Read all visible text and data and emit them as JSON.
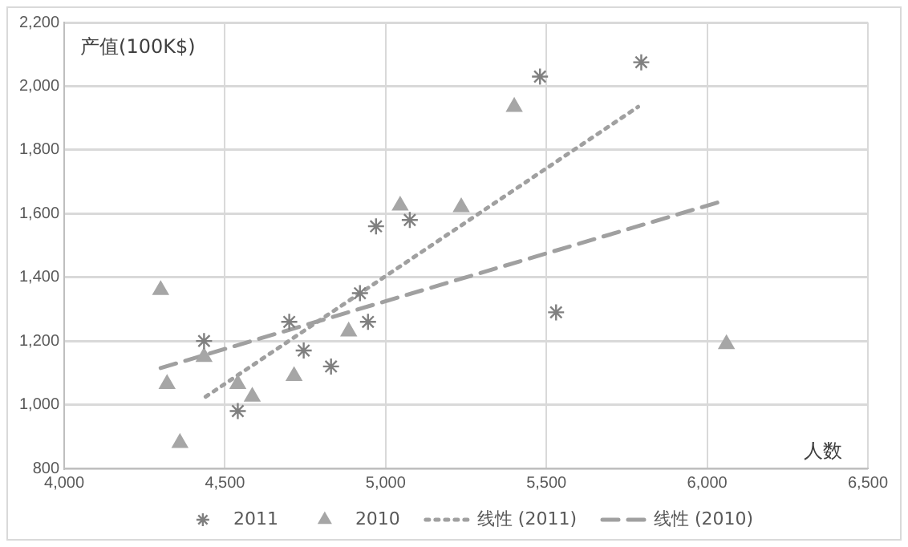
{
  "chart_data": {
    "type": "scatter",
    "xlabel": "人数",
    "ylabel": "产值(100K$)",
    "xlim": [
      4000,
      6500
    ],
    "xticks": [
      {
        "value": 4000,
        "label": "4,000"
      },
      {
        "value": 4500,
        "label": "4,500"
      },
      {
        "value": 5000,
        "label": "5,000"
      },
      {
        "value": 5500,
        "label": "5,500"
      },
      {
        "value": 6000,
        "label": "6,000"
      },
      {
        "value": 6500,
        "label": "6,500"
      }
    ],
    "ylim": [
      800,
      2200
    ],
    "yticks": [
      {
        "value": 800,
        "label": "800"
      },
      {
        "value": 1000,
        "label": "1,000"
      },
      {
        "value": 1200,
        "label": "1,200"
      },
      {
        "value": 1400,
        "label": "1,400"
      },
      {
        "value": 1600,
        "label": "1,600"
      },
      {
        "value": 1800,
        "label": "1,800"
      },
      {
        "value": 2000,
        "label": "2,000"
      },
      {
        "value": 2200,
        "label": "2,200"
      }
    ],
    "grid": true,
    "legend": "bottom",
    "series": [
      {
        "name": "2011",
        "type": "scatter",
        "marker": "cross",
        "color": "#808080",
        "x": [
          4435,
          4540,
          4700,
          4745,
          4830,
          4920,
          4945,
          4970,
          5075,
          5480,
          5795,
          5530
        ],
        "values": [
          1200,
          980,
          1260,
          1170,
          1120,
          1350,
          1260,
          1560,
          1580,
          2030,
          2075,
          1290
        ]
      },
      {
        "name": "2010",
        "type": "scatter",
        "marker": "triangle",
        "color": "#a6a6a6",
        "x": [
          4300,
          4320,
          4360,
          4435,
          4540,
          4585,
          4715,
          4885,
          5045,
          5235,
          5400,
          6060
        ],
        "values": [
          1360,
          1065,
          880,
          1150,
          1065,
          1025,
          1090,
          1230,
          1625,
          1620,
          1935,
          1190
        ]
      },
      {
        "name": "线性 (2011)",
        "type": "line",
        "line_style": "dotted",
        "marker": "none",
        "color": "#a0a0a0",
        "x": [
          4440,
          5785
        ],
        "values": [
          1025,
          1935
        ]
      },
      {
        "name": "线性 (2010)",
        "type": "line",
        "line_style": "dashed",
        "marker": "none",
        "color": "#a0a0a0",
        "x": [
          4300,
          6050
        ],
        "values": [
          1115,
          1640
        ]
      }
    ]
  }
}
